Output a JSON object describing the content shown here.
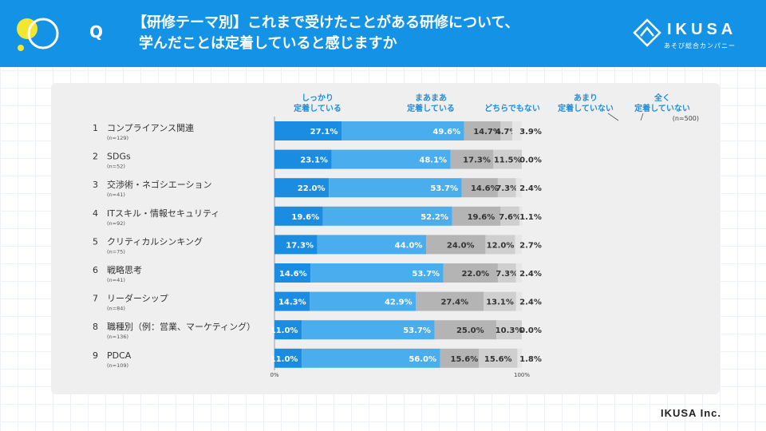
{
  "header": {
    "q_label": "Q",
    "title_line1": "【研修テーマ別】これまで受けたことがある研修について、",
    "title_line2": "学んだことは定着していると感じますか",
    "brand_name": "IKUSA",
    "brand_sub": "あそび総合カンパニー"
  },
  "footer": {
    "company": "IKUSA Inc."
  },
  "colors": {
    "header_bg": "#1493e6",
    "seg1": "#1a8de2",
    "seg2": "#4aaeee",
    "seg3": "#b4b4b4",
    "seg4": "#cfcfcf",
    "seg5": "#e6e6e6",
    "legend_text": "#1a8de2"
  },
  "chart_data": {
    "type": "bar",
    "orientation": "horizontal",
    "stacked": true,
    "sample_note": "(n=500)",
    "xlim": [
      0,
      100
    ],
    "x_tick_labels": [
      "0%",
      "100%"
    ],
    "legend": [
      {
        "line1": "しっかり",
        "line2": "定着している"
      },
      {
        "line1": "まあまあ",
        "line2": "定着している"
      },
      {
        "line1": "",
        "line2": "どちらでもない"
      },
      {
        "line1": "あまり",
        "line2": "定着していない"
      },
      {
        "line1": "全く",
        "line2": "定着していない"
      }
    ],
    "categories": [
      {
        "num": "1",
        "label": "コンプライアンス関連",
        "n": "(n=129)"
      },
      {
        "num": "2",
        "label": "SDGs",
        "n": "(n=52)"
      },
      {
        "num": "3",
        "label": "交渉術・ネゴシエーション",
        "n": "(n=41)"
      },
      {
        "num": "4",
        "label": "ITスキル・情報セキュリティ",
        "n": "(n=92)"
      },
      {
        "num": "5",
        "label": "クリティカルシンキング",
        "n": "(n=75)"
      },
      {
        "num": "6",
        "label": "戦略思考",
        "n": "(n=41)"
      },
      {
        "num": "7",
        "label": "リーダーシップ",
        "n": "(n=84)"
      },
      {
        "num": "8",
        "label": "職種別（例：営業、マーケティング）",
        "n": "(n=136)"
      },
      {
        "num": "9",
        "label": "PDCA",
        "n": "(n=109)"
      }
    ],
    "series": [
      {
        "name": "しっかり定着している",
        "values": [
          27.1,
          23.1,
          22.0,
          19.6,
          17.3,
          14.6,
          14.3,
          11.0,
          11.0
        ]
      },
      {
        "name": "まあまあ定着している",
        "values": [
          49.6,
          48.1,
          53.7,
          52.2,
          44.0,
          53.7,
          42.9,
          53.7,
          56.0
        ]
      },
      {
        "name": "どちらでもない",
        "values": [
          14.7,
          17.3,
          14.6,
          19.6,
          24.0,
          22.0,
          27.4,
          25.0,
          15.6
        ]
      },
      {
        "name": "あまり定着していない",
        "values": [
          4.7,
          11.5,
          7.3,
          7.6,
          12.0,
          7.3,
          13.1,
          10.3,
          15.6
        ]
      },
      {
        "name": "全く定着していない",
        "values": [
          3.9,
          0.0,
          2.4,
          1.1,
          2.7,
          2.4,
          2.4,
          0.0,
          1.8
        ]
      }
    ]
  }
}
